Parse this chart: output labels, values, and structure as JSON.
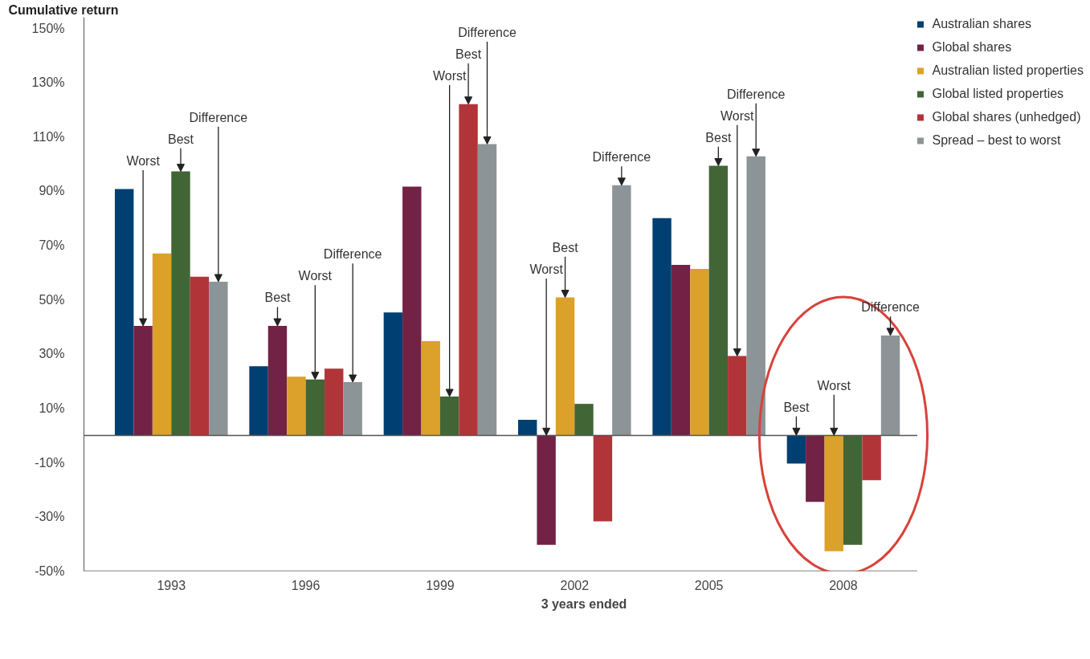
{
  "chart_data": {
    "type": "bar",
    "ylabel": "Cumulative return",
    "xlabel": "3 years ended",
    "categories": [
      "1993",
      "1996",
      "1999",
      "2002",
      "2005",
      "2008"
    ],
    "series": [
      {
        "name": "Australian shares",
        "color": "#003f72",
        "values": [
          90.7,
          25.5,
          45.3,
          5.7,
          80,
          -10.4
        ]
      },
      {
        "name": "Global shares",
        "color": "#722245",
        "values": [
          40.3,
          40.3,
          91.6,
          -40.3,
          62.8,
          -24.5
        ]
      },
      {
        "name": "Australian listed properties",
        "color": "#dba12a",
        "values": [
          67,
          21.6,
          34.7,
          50.8,
          61.3,
          -42.7
        ]
      },
      {
        "name": "Global listed properties",
        "color": "#426535",
        "values": [
          97.2,
          20.6,
          14.3,
          11.6,
          99.3,
          -40.3
        ]
      },
      {
        "name": "Global shares (unhedged)",
        "color": "#b13538",
        "values": [
          58.4,
          24.6,
          122,
          -31.7,
          29.2,
          -16.5
        ]
      },
      {
        "name": "Spread – best to worst",
        "color": "#8c9497",
        "values": [
          56.6,
          19.6,
          107.3,
          92.1,
          102.8,
          36.8
        ]
      }
    ],
    "ylim": [
      -50,
      154
    ],
    "yticks": [
      {
        "value": 150,
        "label": "150%"
      },
      {
        "value": 130,
        "label": "130%"
      },
      {
        "value": 110,
        "label": "110%"
      },
      {
        "value": 90,
        "label": "90%"
      },
      {
        "value": 70,
        "label": "70%"
      },
      {
        "value": 50,
        "label": "50%"
      },
      {
        "value": 30,
        "label": "30%"
      },
      {
        "value": 10,
        "label": "10%"
      },
      {
        "value": -10,
        "label": "-10%"
      },
      {
        "value": -30,
        "label": "-30%"
      },
      {
        "value": -50,
        "label": "-50%"
      }
    ],
    "ref_lines": [
      {
        "axis": "y",
        "value": 0,
        "color": "#555555"
      }
    ],
    "annotations": [
      {
        "text": "Worst",
        "y": 40.3
      },
      {
        "text": "Best",
        "y": 97.2
      },
      {
        "text": "Difference",
        "y": 56.6
      },
      {
        "text": "Worst",
        "y": 20.6
      },
      {
        "text": "Best",
        "y": 40.3
      },
      {
        "text": "Difference",
        "y": 19.6
      },
      {
        "text": "Worst",
        "y": 14.3
      },
      {
        "text": "Best",
        "y": 122
      },
      {
        "text": "Difference",
        "y": 107.3
      },
      {
        "text": "Worst",
        "y": 0
      },
      {
        "text": "Best",
        "y": 50.8
      },
      {
        "text": "Difference",
        "y": 92.1
      },
      {
        "text": "Worst",
        "y": 29.2
      },
      {
        "text": "Best",
        "y": 99.3
      },
      {
        "text": "Difference",
        "y": 102.8
      },
      {
        "text": "Worst",
        "y": 0
      },
      {
        "text": "Best",
        "y": 0
      },
      {
        "text": "Difference",
        "y": 36.8
      }
    ],
    "grid": false,
    "legend": "top right"
  }
}
